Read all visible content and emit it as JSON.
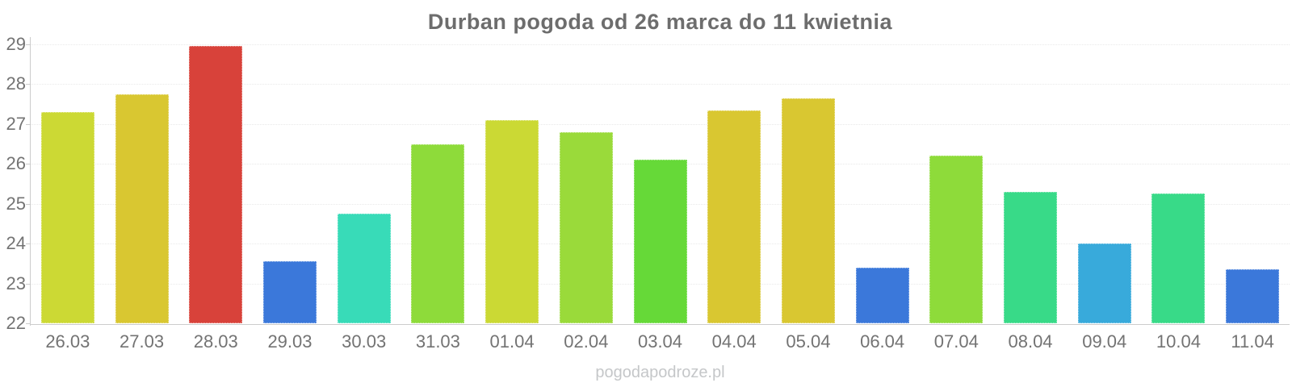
{
  "title": "Durban pogoda od 26 marca do 11 kwietnia",
  "watermark": "pogodapodroze.pl",
  "colors": {
    "background": "#ffffff",
    "title_text": "#6d6d6d",
    "axis_text": "#737373",
    "axis_line": "#cccccc",
    "gridline": "#e9e9e9",
    "watermark_text": "#c5c7c9"
  },
  "chart_data": {
    "type": "bar",
    "title": "Durban pogoda od 26 marca do 11 kwietnia",
    "xlabel": "",
    "ylabel": "",
    "ylim": [
      22,
      29
    ],
    "yticks": [
      22,
      23,
      24,
      25,
      26,
      27,
      28,
      29
    ],
    "grid": true,
    "legend": false,
    "categories": [
      "26.03",
      "27.03",
      "28.03",
      "29.03",
      "30.03",
      "31.03",
      "01.04",
      "02.04",
      "03.04",
      "04.04",
      "05.04",
      "06.04",
      "07.04",
      "08.04",
      "09.04",
      "10.04",
      "11.04"
    ],
    "values": [
      27.3,
      27.75,
      28.95,
      23.55,
      24.75,
      26.5,
      27.1,
      26.8,
      26.1,
      27.35,
      27.65,
      23.4,
      26.2,
      25.3,
      24.0,
      25.25,
      23.35
    ],
    "bar_colors": [
      "#ccd934",
      "#d9c731",
      "#d8423a",
      "#3b78da",
      "#38dbb8",
      "#8edb3a",
      "#cbd934",
      "#9ada3a",
      "#66d938",
      "#d9c731",
      "#d9c731",
      "#3b78da",
      "#8edb3a",
      "#38da88",
      "#38aadb",
      "#38da88",
      "#3b78da"
    ]
  }
}
